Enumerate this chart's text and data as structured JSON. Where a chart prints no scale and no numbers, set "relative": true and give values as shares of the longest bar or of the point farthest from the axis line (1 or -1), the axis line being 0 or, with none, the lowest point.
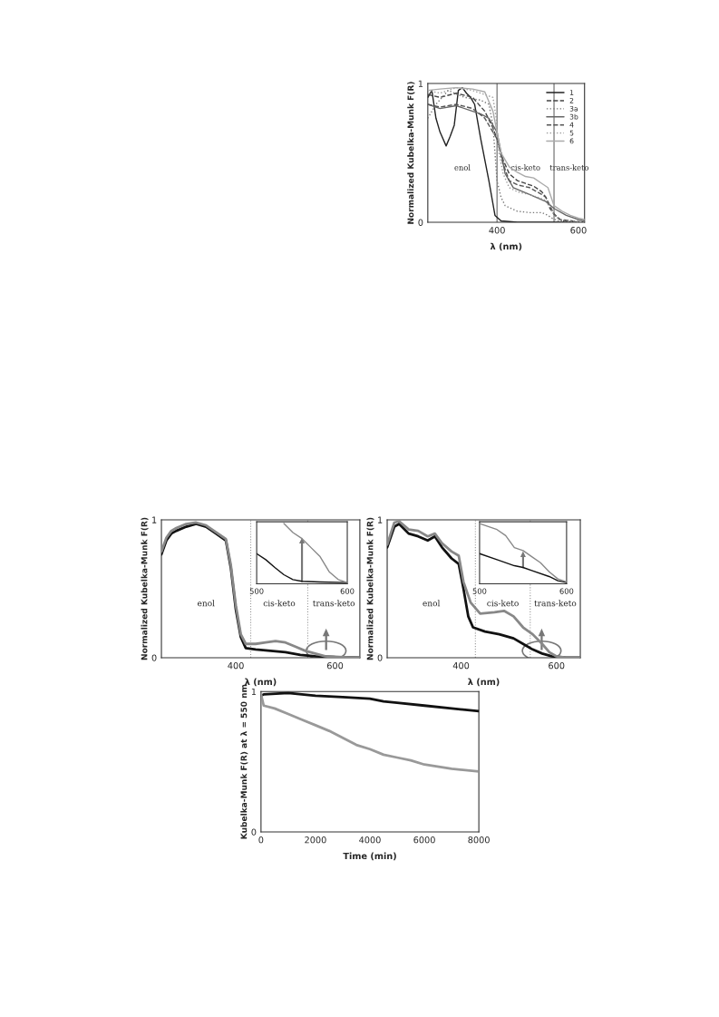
{
  "chart_data": [
    {
      "type": "line",
      "xlabel": "λ (nm)",
      "ylabel": "Normalized Kubelka-Munk F(R)",
      "xlim": [
        230,
        615
      ],
      "ylim": [
        0,
        1
      ],
      "xticks": [
        400,
        600
      ],
      "yticks": [
        0,
        1
      ],
      "grid": false,
      "legend": "top right",
      "annotations": [
        "enol",
        "cis-keto",
        "trans-keto"
      ],
      "ref_lines": [
        {
          "axis": "x",
          "value": 400,
          "color": "#666666",
          "line_style": "solid"
        },
        {
          "axis": "x",
          "value": 540,
          "color": "#666666",
          "line_style": "solid"
        }
      ],
      "series": [
        {
          "name": "1",
          "color": "#222222",
          "line_style": "solid",
          "x": [
            230,
            240,
            250,
            260,
            275,
            285,
            295,
            305,
            315,
            325,
            335,
            345,
            360,
            380,
            395,
            410,
            450,
            615
          ],
          "values": [
            0.9,
            0.95,
            0.75,
            0.65,
            0.55,
            0.62,
            0.7,
            0.95,
            0.97,
            0.93,
            0.9,
            0.85,
            0.6,
            0.3,
            0.05,
            0.01,
            0,
            0
          ]
        },
        {
          "name": "2",
          "color": "#444444",
          "line_style": "dashed",
          "x": [
            230,
            260,
            300,
            340,
            370,
            390,
            400,
            415,
            430,
            450,
            470,
            490,
            510,
            520,
            530,
            545,
            560,
            615
          ],
          "values": [
            0.92,
            0.9,
            0.93,
            0.9,
            0.8,
            0.68,
            0.6,
            0.45,
            0.35,
            0.3,
            0.28,
            0.26,
            0.22,
            0.18,
            0.1,
            0.04,
            0.01,
            0
          ]
        },
        {
          "name": "3a",
          "color": "#777777",
          "line_style": "dotted",
          "x": [
            230,
            250,
            280,
            320,
            360,
            380,
            390,
            400,
            410,
            420,
            450,
            480,
            510,
            525,
            535,
            550,
            615
          ],
          "values": [
            0.75,
            0.85,
            0.95,
            0.9,
            0.88,
            0.85,
            0.7,
            0.3,
            0.18,
            0.12,
            0.08,
            0.07,
            0.07,
            0.05,
            0.03,
            0.01,
            0
          ]
        },
        {
          "name": "3b",
          "color": "#666666",
          "line_style": "solid",
          "x": [
            230,
            260,
            300,
            340,
            360,
            380,
            400,
            420,
            440,
            480,
            520,
            540,
            570,
            600,
            615
          ],
          "values": [
            0.85,
            0.82,
            0.84,
            0.8,
            0.78,
            0.75,
            0.65,
            0.35,
            0.25,
            0.2,
            0.15,
            0.1,
            0.05,
            0.02,
            0.01
          ]
        },
        {
          "name": "4",
          "color": "#555555",
          "line_style": "dashed",
          "x": [
            230,
            260,
            300,
            340,
            370,
            390,
            400,
            415,
            430,
            450,
            480,
            510,
            520,
            530,
            540,
            555,
            615
          ],
          "values": [
            0.85,
            0.83,
            0.85,
            0.82,
            0.75,
            0.65,
            0.6,
            0.42,
            0.3,
            0.27,
            0.25,
            0.2,
            0.18,
            0.12,
            0.06,
            0.02,
            0
          ]
        },
        {
          "name": "5",
          "color": "#999999",
          "line_style": "dotted",
          "x": [
            230,
            260,
            300,
            340,
            370,
            390,
            398,
            405,
            415,
            430,
            450,
            480,
            510,
            525,
            540,
            555,
            615
          ],
          "values": [
            0.95,
            0.93,
            0.97,
            0.95,
            0.92,
            0.9,
            0.75,
            0.5,
            0.35,
            0.25,
            0.22,
            0.2,
            0.17,
            0.15,
            0.05,
            0.02,
            0
          ]
        },
        {
          "name": "6",
          "color": "#aaaaaa",
          "line_style": "solid",
          "x": [
            230,
            260,
            300,
            340,
            370,
            390,
            400,
            410,
            430,
            450,
            470,
            490,
            510,
            525,
            540,
            560,
            580,
            600,
            615
          ],
          "values": [
            0.95,
            0.96,
            0.97,
            0.96,
            0.94,
            0.8,
            0.65,
            0.5,
            0.4,
            0.36,
            0.33,
            0.32,
            0.28,
            0.25,
            0.12,
            0.08,
            0.05,
            0.03,
            0.02
          ]
        }
      ]
    },
    {
      "type": "line",
      "xlabel": "λ (nm)",
      "ylabel": "Normalized Kubelka-Munk F(R)",
      "xlim": [
        250,
        650
      ],
      "ylim": [
        0,
        1
      ],
      "xticks": [
        400,
        600
      ],
      "yticks": [
        0,
        1
      ],
      "grid": false,
      "annotations": [
        "enol",
        "cis-keto",
        "trans-keto"
      ],
      "ref_lines": [
        {
          "axis": "x",
          "value": 430,
          "color": "#999999",
          "line_style": "dotted"
        },
        {
          "axis": "x",
          "value": 545,
          "color": "#999999",
          "line_style": "dotted"
        }
      ],
      "series": [
        {
          "color": "#111111",
          "line_style": "solid",
          "x": [
            250,
            260,
            270,
            280,
            300,
            320,
            340,
            360,
            380,
            390,
            400,
            410,
            420,
            440,
            470,
            500,
            530,
            560,
            600,
            650
          ],
          "values": [
            0.75,
            0.85,
            0.9,
            0.92,
            0.95,
            0.97,
            0.95,
            0.9,
            0.85,
            0.65,
            0.35,
            0.15,
            0.07,
            0.06,
            0.05,
            0.04,
            0.02,
            0.01,
            0.005,
            0
          ]
        },
        {
          "color": "#888888",
          "line_style": "solid",
          "x": [
            250,
            260,
            270,
            280,
            300,
            320,
            340,
            360,
            380,
            390,
            400,
            410,
            420,
            440,
            460,
            480,
            500,
            520,
            540,
            560,
            580,
            600,
            650
          ],
          "values": [
            0.77,
            0.87,
            0.92,
            0.94,
            0.97,
            0.98,
            0.96,
            0.91,
            0.86,
            0.67,
            0.38,
            0.17,
            0.1,
            0.1,
            0.11,
            0.12,
            0.11,
            0.08,
            0.05,
            0.03,
            0.01,
            0.005,
            0
          ]
        }
      ]
    },
    {
      "type": "line",
      "relative": true,
      "xlim": [
        500,
        600
      ],
      "xticks": [
        500,
        600
      ],
      "tick_labels": "x",
      "grid": false,
      "series": [
        {
          "color": "#111111",
          "line_style": "solid",
          "x": [
            500,
            510,
            520,
            530,
            540,
            550,
            570,
            600
          ],
          "values": [
            0.5,
            0.4,
            0.27,
            0.15,
            0.07,
            0.04,
            0.03,
            0.02
          ]
        },
        {
          "color": "#888888",
          "line_style": "solid",
          "x": [
            530,
            540,
            550,
            560,
            570,
            580,
            590,
            600
          ],
          "values": [
            1.0,
            0.85,
            0.75,
            0.6,
            0.45,
            0.2,
            0.07,
            0.02
          ]
        }
      ]
    },
    {
      "type": "line",
      "xlabel": "λ (nm)",
      "ylabel": "Normalized Kubelka-Munk F(R)",
      "xlim": [
        245,
        650
      ],
      "ylim": [
        0,
        1
      ],
      "xticks": [
        400,
        600
      ],
      "yticks": [
        0,
        1
      ],
      "grid": false,
      "annotations": [
        "enol",
        "cis-keto",
        "trans-keto"
      ],
      "ref_lines": [
        {
          "axis": "x",
          "value": 430,
          "color": "#999999",
          "line_style": "dotted"
        },
        {
          "axis": "x",
          "value": 545,
          "color": "#999999",
          "line_style": "dotted"
        }
      ],
      "series": [
        {
          "color": "#111111",
          "line_style": "solid",
          "x": [
            245,
            260,
            270,
            290,
            310,
            330,
            345,
            360,
            380,
            395,
            405,
            415,
            425,
            450,
            480,
            510,
            530,
            550,
            570,
            590,
            620,
            650
          ],
          "values": [
            0.8,
            0.95,
            0.97,
            0.9,
            0.88,
            0.85,
            0.88,
            0.8,
            0.72,
            0.68,
            0.5,
            0.3,
            0.22,
            0.19,
            0.17,
            0.14,
            0.1,
            0.06,
            0.03,
            0.01,
            0,
            0
          ]
        },
        {
          "color": "#888888",
          "line_style": "solid",
          "x": [
            245,
            260,
            270,
            290,
            310,
            330,
            345,
            360,
            380,
            395,
            405,
            420,
            440,
            470,
            490,
            510,
            530,
            550,
            570,
            585,
            600,
            620,
            650
          ],
          "values": [
            0.82,
            0.98,
            0.99,
            0.93,
            0.92,
            0.88,
            0.9,
            0.83,
            0.77,
            0.74,
            0.55,
            0.4,
            0.32,
            0.33,
            0.34,
            0.3,
            0.22,
            0.17,
            0.1,
            0.04,
            0.01,
            0,
            0
          ]
        }
      ]
    },
    {
      "type": "line",
      "relative": true,
      "xlim": [
        500,
        600
      ],
      "xticks": [
        500,
        600
      ],
      "tick_labels": "x",
      "grid": false,
      "series": [
        {
          "color": "#111111",
          "line_style": "solid",
          "x": [
            500,
            520,
            540,
            550,
            560,
            580,
            590,
            600
          ],
          "values": [
            0.5,
            0.4,
            0.3,
            0.27,
            0.22,
            0.12,
            0.05,
            0.02
          ]
        },
        {
          "color": "#888888",
          "line_style": "solid",
          "x": [
            500,
            510,
            520,
            530,
            540,
            550,
            560,
            570,
            580,
            590,
            600
          ],
          "values": [
            1.0,
            0.95,
            0.9,
            0.8,
            0.6,
            0.55,
            0.45,
            0.35,
            0.2,
            0.08,
            0.03
          ]
        }
      ]
    },
    {
      "type": "line",
      "xlabel": "Time (min)",
      "ylabel": "Kubelka-Munk F(R) at λ = 550 nm",
      "xlim": [
        0,
        8000
      ],
      "ylim": [
        0,
        1
      ],
      "xticks": [
        0,
        2000,
        4000,
        6000,
        8000
      ],
      "yticks": [
        0,
        1
      ],
      "grid": false,
      "series": [
        {
          "color": "#111111",
          "line_style": "solid",
          "x": [
            0,
            100,
            1000,
            2000,
            3000,
            4000,
            4500,
            5000,
            6000,
            7000,
            7500,
            8000
          ],
          "values": [
            0.97,
            0.98,
            0.99,
            0.97,
            0.96,
            0.95,
            0.93,
            0.92,
            0.9,
            0.88,
            0.87,
            0.86
          ]
        },
        {
          "color": "#999999",
          "line_style": "solid",
          "x": [
            0,
            100,
            500,
            1000,
            1500,
            2000,
            2500,
            3000,
            3500,
            4000,
            4500,
            5000,
            5500,
            6000,
            7000,
            8000
          ],
          "values": [
            0.98,
            0.9,
            0.88,
            0.84,
            0.8,
            0.76,
            0.72,
            0.67,
            0.62,
            0.59,
            0.55,
            0.53,
            0.51,
            0.48,
            0.45,
            0.43
          ]
        }
      ]
    }
  ]
}
